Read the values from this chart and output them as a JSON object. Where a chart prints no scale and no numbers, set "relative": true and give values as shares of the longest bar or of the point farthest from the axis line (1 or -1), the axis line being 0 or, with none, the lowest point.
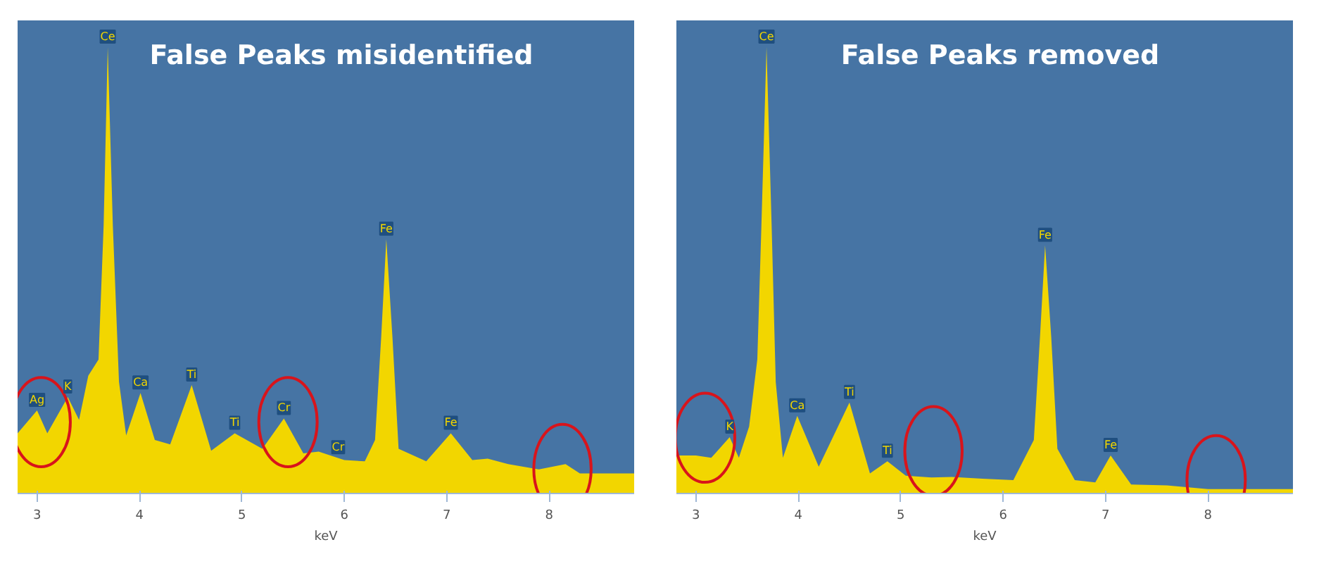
{
  "chart_data": [
    {
      "type": "area",
      "title": "False Peaks misidentified",
      "xlabel": "keV",
      "relative": true,
      "color": "#f2d600",
      "xlim": [
        2.81,
        8.83
      ],
      "xticks": [
        3,
        4,
        5,
        6,
        7,
        8
      ],
      "grid": false,
      "x": [
        2.81,
        3.0,
        3.1,
        3.3,
        3.41,
        3.5,
        3.6,
        3.65,
        3.69,
        3.74,
        3.8,
        3.87,
        4.01,
        4.15,
        4.3,
        4.51,
        4.7,
        4.93,
        5.2,
        5.41,
        5.6,
        5.75,
        6.0,
        6.2,
        6.3,
        6.36,
        6.41,
        6.47,
        6.53,
        6.8,
        7.04,
        7.25,
        7.4,
        7.6,
        7.9,
        8.16,
        8.3,
        8.83
      ],
      "values": [
        0.135,
        0.186,
        0.135,
        0.216,
        0.165,
        0.264,
        0.3,
        0.6,
        1.0,
        0.6,
        0.25,
        0.13,
        0.225,
        0.12,
        0.11,
        0.243,
        0.096,
        0.135,
        0.1,
        0.168,
        0.09,
        0.094,
        0.075,
        0.072,
        0.12,
        0.35,
        0.57,
        0.35,
        0.1,
        0.072,
        0.135,
        0.075,
        0.078,
        0.066,
        0.054,
        0.066,
        0.045,
        0.045
      ],
      "annotations": [
        {
          "text": "Ce",
          "x": 3.69,
          "y": 1.0
        },
        {
          "text": "Ag",
          "x": 3.0,
          "y": 0.186
        },
        {
          "text": "K",
          "x": 3.3,
          "y": 0.216
        },
        {
          "text": "Ca",
          "x": 4.01,
          "y": 0.225
        },
        {
          "text": "Ti",
          "x": 4.51,
          "y": 0.243
        },
        {
          "text": "Ti",
          "x": 4.93,
          "y": 0.135
        },
        {
          "text": "Cr",
          "x": 5.41,
          "y": 0.168
        },
        {
          "text": "Cr",
          "x": 5.94,
          "y": 0.08
        },
        {
          "text": "Fe",
          "x": 6.41,
          "y": 0.57
        },
        {
          "text": "Fe",
          "x": 7.04,
          "y": 0.135
        }
      ]
    },
    {
      "type": "area",
      "title": "False Peaks removed",
      "xlabel": "keV",
      "relative": true,
      "color": "#f2d600",
      "xlim": [
        2.81,
        8.83
      ],
      "xticks": [
        3,
        4,
        5,
        6,
        7,
        8
      ],
      "grid": false,
      "x": [
        2.81,
        3.0,
        3.15,
        3.33,
        3.42,
        3.52,
        3.6,
        3.64,
        3.69,
        3.74,
        3.78,
        3.85,
        3.99,
        4.2,
        4.5,
        4.7,
        4.87,
        5.05,
        5.3,
        5.5,
        5.8,
        6.1,
        6.3,
        6.36,
        6.41,
        6.47,
        6.53,
        6.7,
        6.9,
        7.05,
        7.25,
        7.6,
        8.0,
        8.83
      ],
      "values": [
        0.085,
        0.085,
        0.08,
        0.126,
        0.08,
        0.15,
        0.3,
        0.6,
        1.0,
        0.6,
        0.25,
        0.08,
        0.174,
        0.06,
        0.204,
        0.045,
        0.072,
        0.04,
        0.036,
        0.037,
        0.033,
        0.03,
        0.12,
        0.35,
        0.556,
        0.35,
        0.1,
        0.03,
        0.025,
        0.085,
        0.02,
        0.018,
        0.01,
        0.01
      ],
      "annotations": [
        {
          "text": "Ce",
          "x": 3.69,
          "y": 1.0
        },
        {
          "text": "K",
          "x": 3.33,
          "y": 0.126
        },
        {
          "text": "Ca",
          "x": 3.99,
          "y": 0.174
        },
        {
          "text": "Ti",
          "x": 4.5,
          "y": 0.204
        },
        {
          "text": "Ti",
          "x": 4.87,
          "y": 0.072
        },
        {
          "text": "Fe",
          "x": 6.41,
          "y": 0.556
        },
        {
          "text": "Fe",
          "x": 7.05,
          "y": 0.085
        }
      ]
    }
  ]
}
